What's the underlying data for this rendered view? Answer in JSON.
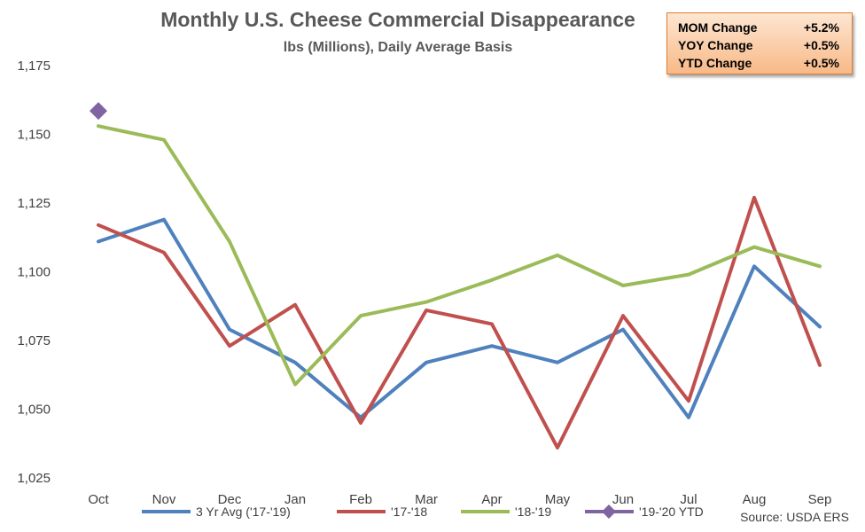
{
  "chart_data": {
    "type": "line",
    "title": "Monthly U.S. Cheese Commercial Disappearance",
    "subtitle": "lbs (Millions), Daily Average Basis",
    "categories": [
      "Oct",
      "Nov",
      "Dec",
      "Jan",
      "Feb",
      "Mar",
      "Apr",
      "May",
      "Jun",
      "Jul",
      "Aug",
      "Sep"
    ],
    "ylim": [
      1025,
      1175
    ],
    "yticks": [
      "1,025",
      "1,050",
      "1,075",
      "1,100",
      "1,125",
      "1,150",
      "1,175"
    ],
    "ytick_values": [
      1025,
      1050,
      1075,
      1100,
      1125,
      1150,
      1175
    ],
    "grid": false,
    "legend_position": "bottom",
    "series": [
      {
        "name": "3 Yr Avg ('17-'19)",
        "color": "#4f81bd",
        "marker": "none",
        "values": [
          1111,
          1119,
          1079,
          1067,
          1047,
          1067,
          1073,
          1067,
          1079,
          1047,
          1102,
          1080
        ]
      },
      {
        "name": "'17-'18",
        "color": "#c0504d",
        "marker": "none",
        "values": [
          1117,
          1107,
          1073,
          1088,
          1045,
          1086,
          1081,
          1036,
          1084,
          1053,
          1127,
          1066
        ]
      },
      {
        "name": "'18-'19",
        "color": "#9bbb59",
        "marker": "none",
        "values": [
          1153,
          1148,
          1111,
          1059,
          1084,
          1089,
          1097,
          1106,
          1095,
          1099,
          1109,
          1102
        ]
      },
      {
        "name": "'19-'20 YTD",
        "color": "#8064a2",
        "marker": "diamond",
        "values": [
          1158.5,
          null,
          null,
          null,
          null,
          null,
          null,
          null,
          null,
          null,
          null,
          null
        ]
      }
    ],
    "source": "Source: USDA ERS"
  },
  "stats_box": {
    "rows": [
      {
        "label": "MOM Change",
        "value": "+5.2%"
      },
      {
        "label": "YOY Change",
        "value": "+0.5%"
      },
      {
        "label": "YTD Change",
        "value": "+0.5%"
      }
    ]
  }
}
